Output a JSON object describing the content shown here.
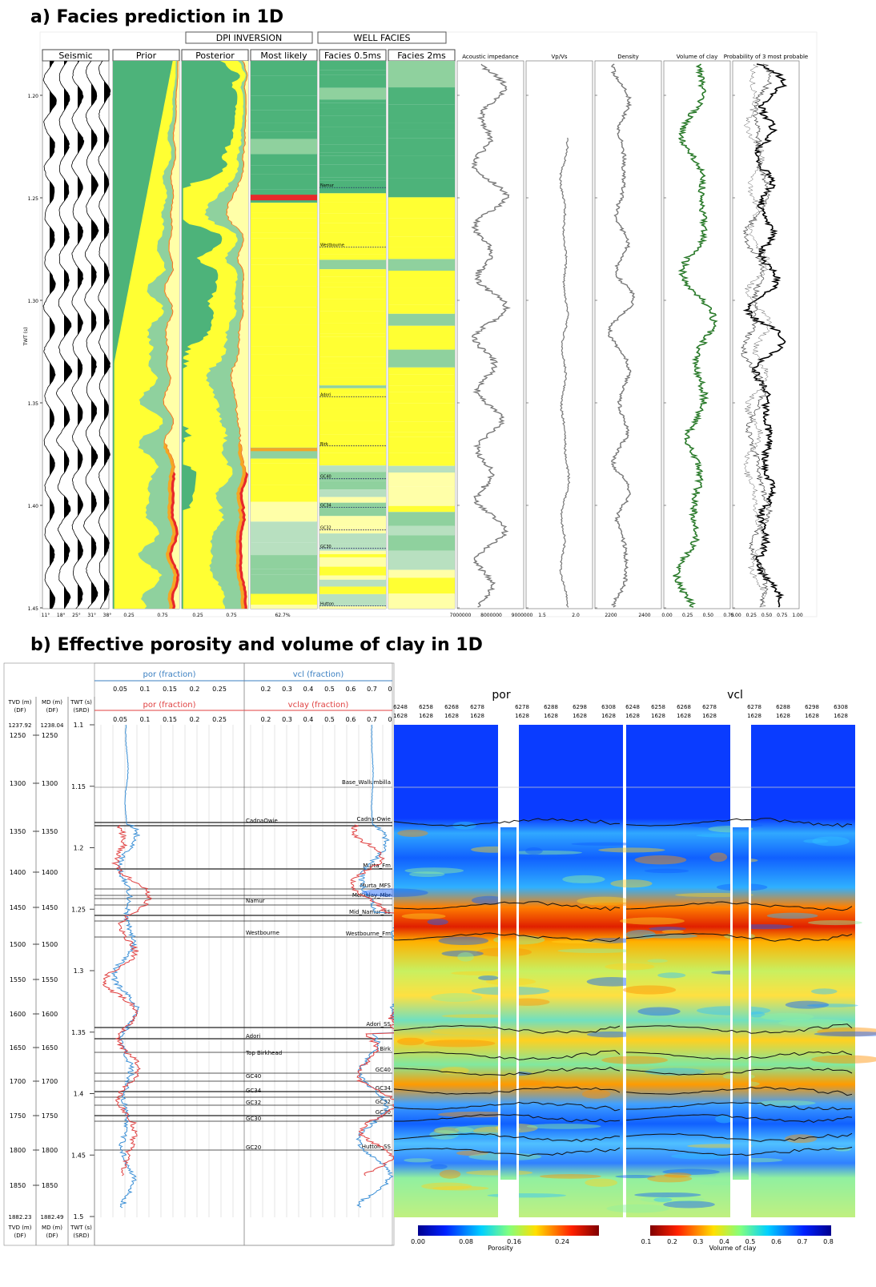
{
  "part_a": {
    "title": "a) Facies prediction in 1D",
    "groups": [
      "DPI INVERSION",
      "WELL FACIES"
    ],
    "tracks": [
      "Seismic",
      "Prior",
      "Posterior",
      "Most likely",
      "Facies 0.5ms",
      "Facies 2ms",
      "Acoustic impedance",
      "Vp/Vs",
      "Density",
      "Volume of clay",
      "Probability of 3 most probable"
    ],
    "y_label": "TWT (s)",
    "y_ticks": [
      "1.20",
      "1.25",
      "1.30",
      "1.35",
      "1.40",
      "1.45"
    ],
    "bottom_ticks": {
      "Seismic": [
        "11°",
        "18°",
        "25°",
        "31°",
        "38°"
      ],
      "Prior": [
        "0.25",
        "0.75"
      ],
      "Posterior": [
        "0.25",
        "0.75"
      ],
      "Most likely": [
        "62.7%"
      ],
      "Acoustic impedance": [
        "7000000",
        "8000000",
        "9000000"
      ],
      "Vp/Vs": [
        "1.5",
        "2.0"
      ],
      "Density": [
        "2200",
        "2400"
      ],
      "Volume of clay": [
        "0.00",
        "0.25",
        "0.50",
        "0.75"
      ],
      "Probability of 3 most probable": [
        "0.00",
        "0.25",
        "0.50",
        "0.75",
        "1.00"
      ]
    },
    "horizons": [
      {
        "label": "Namur",
        "twt": 1.245
      },
      {
        "label": "Westbourne",
        "twt": 1.274
      },
      {
        "label": "Adori",
        "twt": 1.347
      },
      {
        "label": "Birk",
        "twt": 1.371
      },
      {
        "label": "GC40",
        "twt": 1.387
      },
      {
        "label": "GC34",
        "twt": 1.401
      },
      {
        "label": "GC32",
        "twt": 1.412
      },
      {
        "label": "GC30",
        "twt": 1.421
      },
      {
        "label": "Hutton",
        "twt": 1.449
      }
    ]
  },
  "part_b": {
    "title": "b) Effective porosity and volume of clay in 1D",
    "columns": [
      [
        "TVD (m)",
        "(DF)"
      ],
      [
        "MD (m)",
        "(DF)"
      ],
      [
        "TWT (s)",
        "(SRD)"
      ]
    ],
    "tvd_top": "1237.92",
    "tvd_bottom": "1882.23",
    "md_top": "1238.04",
    "md_bottom": "1882.49",
    "depth_ticks": [
      "1250",
      "1300",
      "1350",
      "1400",
      "1450",
      "1500",
      "1550",
      "1600",
      "1650",
      "1700",
      "1750",
      "1800",
      "1850"
    ],
    "twt_ticks": [
      "1.1",
      "1.15",
      "1.2",
      "1.25",
      "1.3",
      "1.35",
      "1.4",
      "1.45",
      "1.5"
    ],
    "por_headers": [
      "por (fraction)",
      "por (fraction)"
    ],
    "vcl_headers": [
      "vcl (fraction)",
      "vclay (fraction)"
    ],
    "por_scale": [
      "0.05",
      "0.1",
      "0.15",
      "0.2",
      "0.25"
    ],
    "vcl_scale": [
      "0.2",
      "0.3",
      "0.4",
      "0.5",
      "0.6",
      "0.7",
      "0"
    ],
    "log_horizons": [
      "CadnaOwie",
      "Namur",
      "Westbourne",
      "Adori",
      "Top Birkhead",
      "GC40",
      "GC34",
      "GC32",
      "GC30",
      "GC20"
    ],
    "section_horizons": [
      "Base_Wallumbilla",
      "Cadna-Owie",
      "Murta_Fm",
      "Murta_MFS",
      "McKinlay_Mbr",
      "Mid_Namur_SS",
      "Westbourne_Fm",
      "Adori_SS",
      "Birk",
      "GC40",
      "GC34",
      "GC32",
      "GC30",
      "Hutton_SS"
    ],
    "sections": [
      "por",
      "vcl"
    ],
    "traces_left": [
      "6248",
      "6258",
      "6268",
      "6278"
    ],
    "traces_right": [
      "6278",
      "6288",
      "6298",
      "6308"
    ],
    "trace_line": "1628",
    "por_colorbar": {
      "ticks": [
        "0.00",
        "0.08",
        "0.16",
        "0.24"
      ],
      "label": "Porosity"
    },
    "vcl_colorbar": {
      "ticks": [
        "0.1",
        "0.2",
        "0.3",
        "0.4",
        "0.5",
        "0.6",
        "0.7",
        "0.8"
      ],
      "label": "Volume of clay"
    }
  }
}
